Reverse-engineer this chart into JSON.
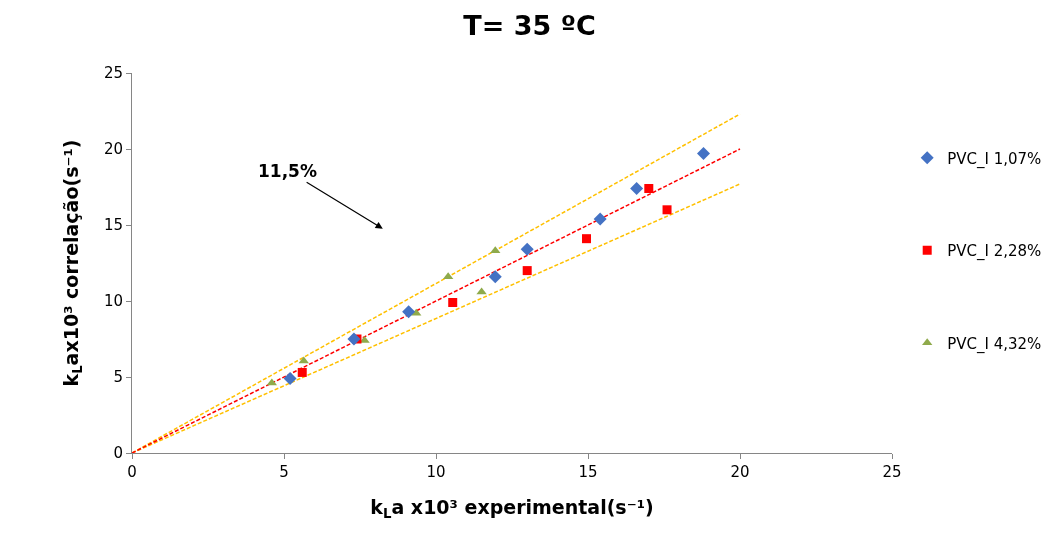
{
  "chart_data": {
    "type": "scatter",
    "title": "T= 35 ºC",
    "xlabel": "k$_{L}$a x10³ experimental(s⁻¹)",
    "ylabel": "k$_{L}$ax10³ correlação(s⁻¹)",
    "xlim": [
      0,
      25
    ],
    "ylim": [
      0,
      25
    ],
    "xticks": [
      0,
      5,
      10,
      15,
      20,
      25
    ],
    "yticks": [
      0,
      5,
      10,
      15,
      20,
      25
    ],
    "grid": false,
    "legend": "right",
    "annotations": [
      "11,5%"
    ],
    "series": [
      {
        "name": "PVC_I 1,07%",
        "color": "#4472c4",
        "marker": "diamond",
        "x": [
          5.2,
          7.3,
          9.1,
          11.95,
          13.0,
          15.4,
          16.6,
          18.8
        ],
        "values": [
          4.9,
          7.5,
          9.3,
          11.6,
          13.4,
          15.4,
          17.4,
          19.7
        ]
      },
      {
        "name": "PVC_I 2,28%",
        "color": "#ff0000",
        "marker": "square",
        "x": [
          5.6,
          7.4,
          10.55,
          13.0,
          14.95,
          17.0,
          17.6
        ],
        "values": [
          5.3,
          7.5,
          9.9,
          12.0,
          14.1,
          17.4,
          16.0
        ]
      },
      {
        "name": "PVC_I 4,32%",
        "color": "#8faa4b",
        "marker": "triangle",
        "x": [
          4.6,
          5.65,
          7.65,
          9.35,
          10.4,
          11.5,
          11.95
        ],
        "values": [
          4.6,
          6.05,
          7.4,
          9.2,
          11.6,
          10.6,
          13.3
        ]
      },
      {
        "type": "line",
        "color": "#ff0000",
        "marker": "none",
        "line_style": "dashed",
        "x": [
          0,
          20
        ],
        "values": [
          0,
          20
        ]
      },
      {
        "type": "line",
        "color": "#ffc000",
        "marker": "none",
        "line_style": "dashed",
        "x": [
          0,
          20
        ],
        "values": [
          0,
          22.3
        ]
      },
      {
        "type": "line",
        "color": "#ffc000",
        "marker": "none",
        "line_style": "dashed",
        "x": [
          0,
          20
        ],
        "values": [
          0,
          17.7
        ]
      }
    ]
  }
}
